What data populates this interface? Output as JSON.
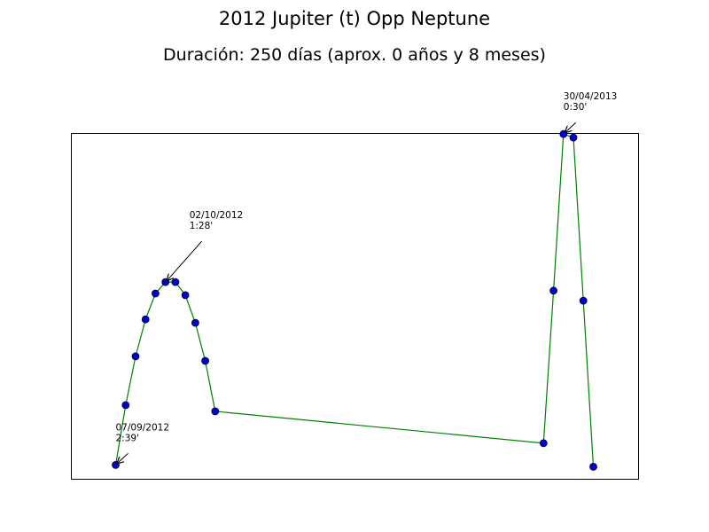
{
  "title": "2012 Jupiter (t) Opp Neptune",
  "subtitle": "Duración: 250 días (aprox. 0 años y 8 meses)",
  "colors": {
    "line": "#008000",
    "marker_fill": "#0000cc",
    "marker_edge": "#000033",
    "frame": "#000000",
    "background": "#ffffff"
  },
  "chart_data": {
    "type": "line",
    "title": "2012 Jupiter (t) Opp Neptune",
    "subtitle": "Duración: 250 días (aprox. 0 años y 8 meses)",
    "xlabel": "",
    "ylabel": "",
    "xlim": [
      -1,
      56
    ],
    "ylim": [
      0,
      1
    ],
    "axis_ticks_visible": false,
    "grid": false,
    "markers": true,
    "series": [
      {
        "x": [
          3.5,
          4.5,
          5.5,
          6.5,
          7.5,
          8.5,
          9.5,
          10.5,
          11.5,
          12.5,
          13.5,
          46.5,
          47.5,
          48.5,
          49.5,
          50.5,
          51.5
        ],
        "y": [
          0.04,
          0.213,
          0.354,
          0.461,
          0.536,
          0.569,
          0.569,
          0.531,
          0.451,
          0.341,
          0.195,
          0.103,
          0.544,
          0.997,
          0.987,
          0.515,
          0.035
        ]
      }
    ],
    "annotations": [
      {
        "point_index": 0,
        "lines": [
          "07/09/2012",
          "2:39'"
        ]
      },
      {
        "point_index": 5,
        "lines": [
          "02/10/2012",
          "1:28'"
        ]
      },
      {
        "point_index": 13,
        "lines": [
          "30/04/2013",
          "0:30'"
        ]
      }
    ]
  }
}
